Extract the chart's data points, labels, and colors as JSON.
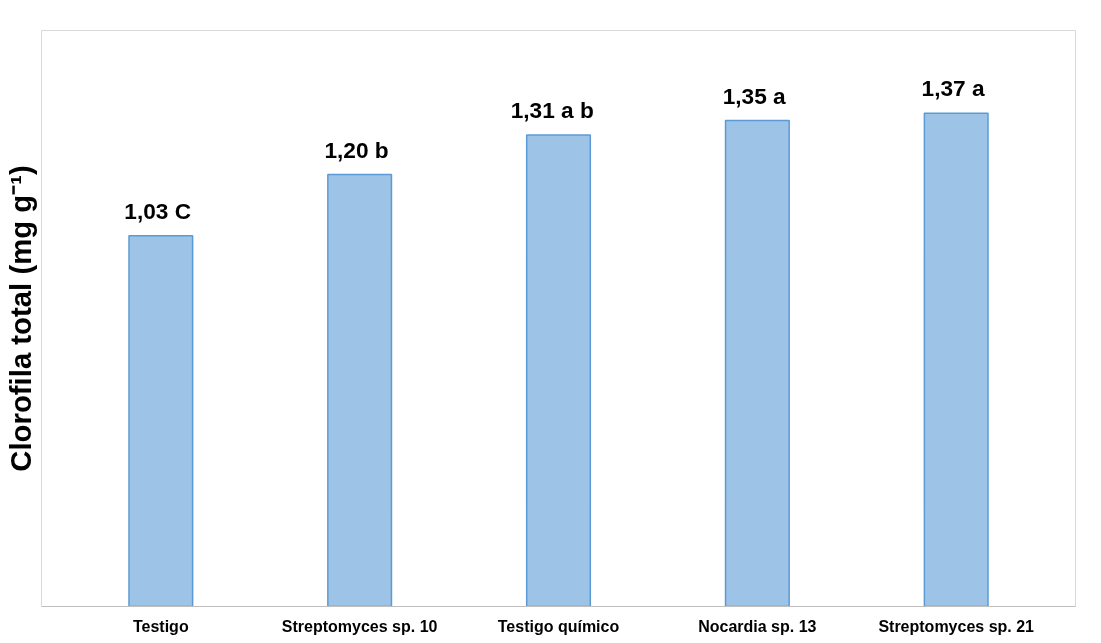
{
  "chart_data": {
    "type": "bar",
    "ylabel": "Clorofila total (mg g⁻¹)",
    "categories": [
      "Testigo",
      "Streptomyces sp. 10",
      "Testigo químico",
      "Nocardia sp. 13",
      "Streptomyces sp. 21"
    ],
    "values": [
      1.03,
      1.2,
      1.31,
      1.35,
      1.37
    ],
    "value_labels": [
      "1,03  C",
      "1,20  b",
      "1,31  a  b",
      "1,35  a",
      "1,37  a"
    ],
    "color": "#9dc3e6",
    "ylim": [
      0,
      1.6
    ],
    "grid": false,
    "tick_labels": "x"
  }
}
